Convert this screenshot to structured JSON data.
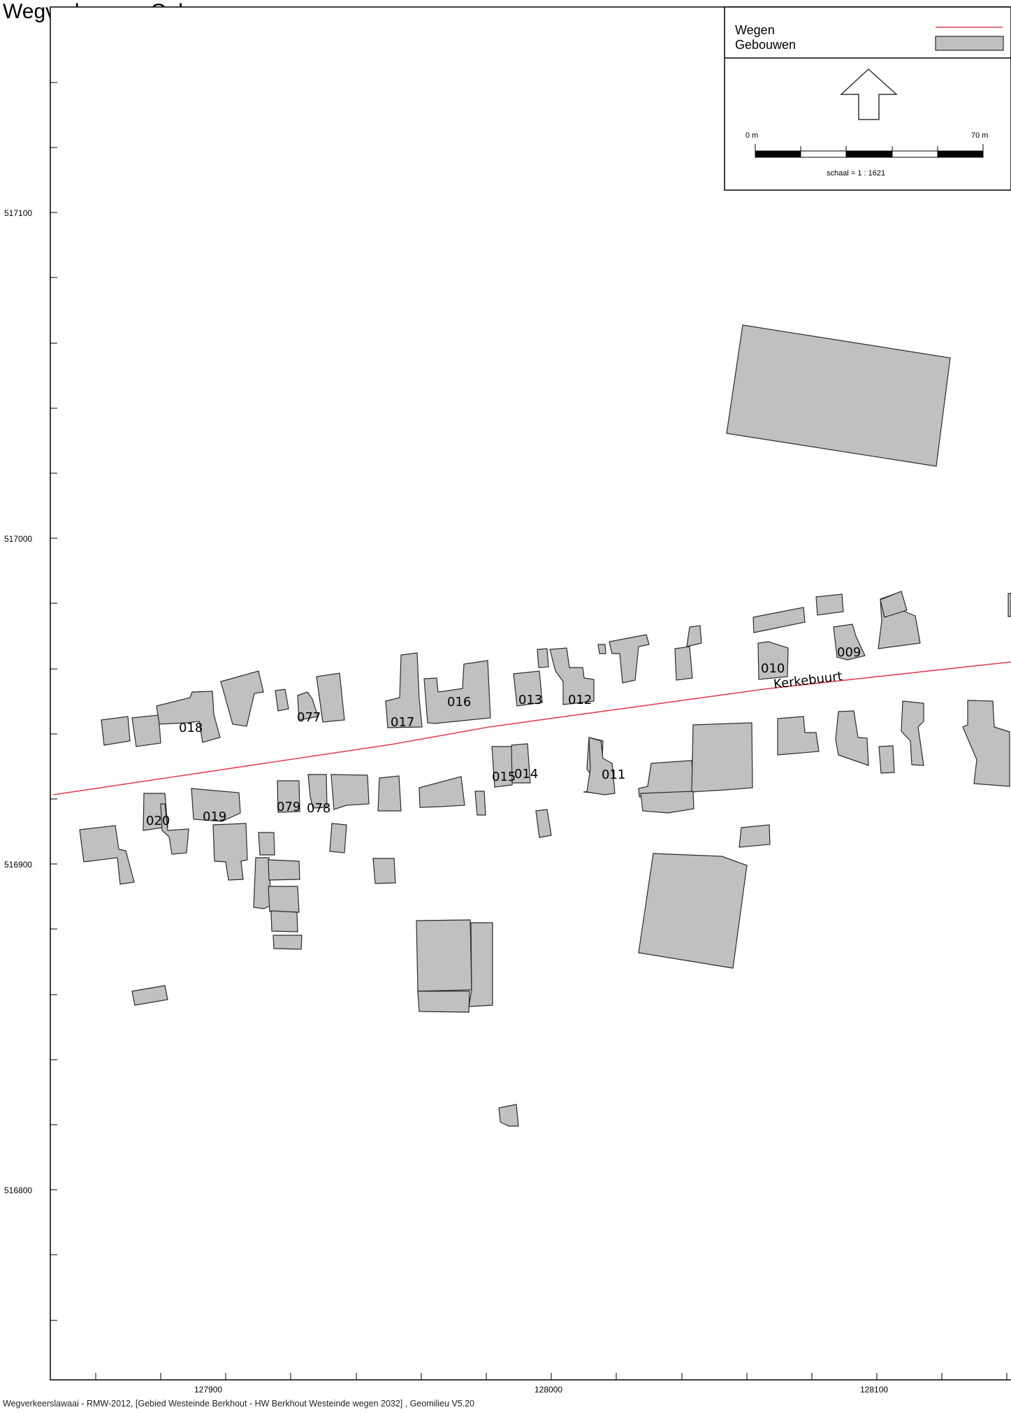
{
  "title": "Wegverkeer op Gebouwen",
  "legend": {
    "roads_label": "Wegen",
    "buildings_label": "Gebouwen",
    "road_color": "#e04050",
    "building_color": "#c0c0c0",
    "north_arrow_icon": "north-arrow-icon"
  },
  "scale_bar": {
    "start_label": "0 m",
    "end_label": "70 m",
    "scale_text": "schaal = 1 : 1621"
  },
  "axes": {
    "y_ticks": [
      "517100",
      "517000",
      "516900",
      "516800"
    ],
    "x_ticks": [
      "127900",
      "128000",
      "128100"
    ]
  },
  "street_name": "Kerkebuurt",
  "building_labels": [
    "018",
    "077",
    "017",
    "016",
    "013",
    "012",
    "010",
    "009",
    "020",
    "019",
    "079",
    "078",
    "015",
    "014",
    "011"
  ],
  "footer": "Wegverkeerslawaai - RMW-2012, [Gebied Westeinde Berkhout - HW Berkhout Westeinde wegen 2032] , Geomilieu V5.20"
}
